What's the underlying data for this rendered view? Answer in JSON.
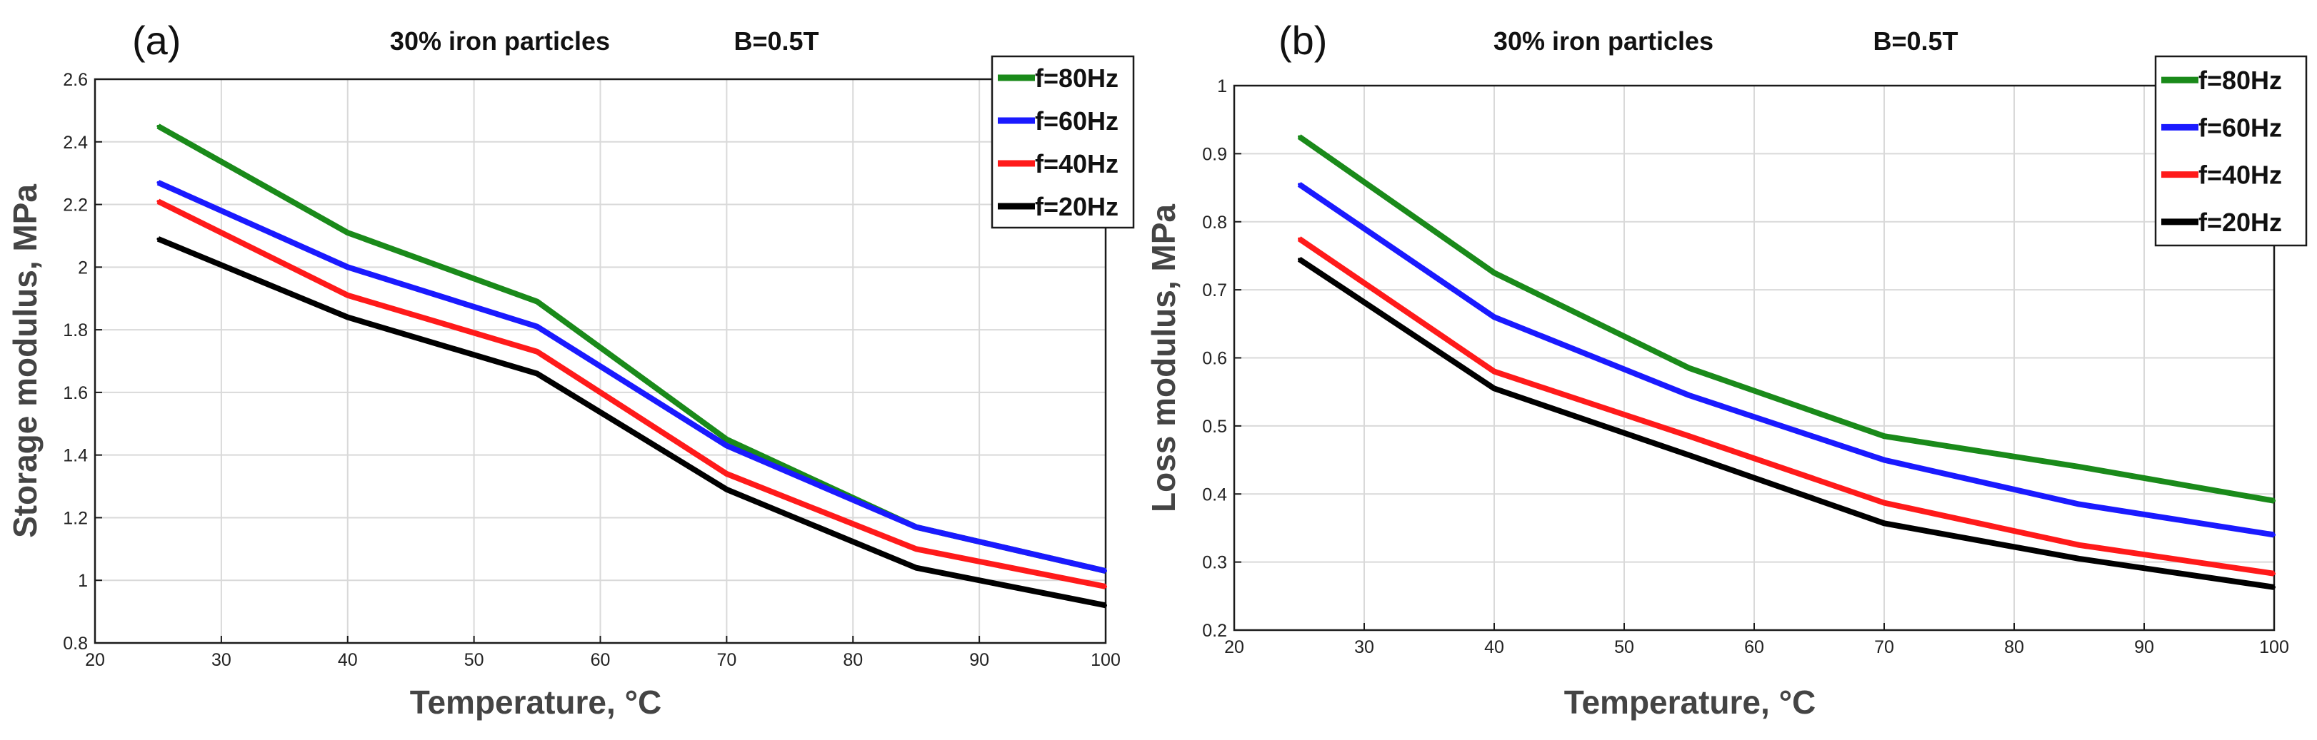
{
  "chart_data": [
    {
      "type": "line",
      "panel": "(a)",
      "title": "30% iron particles",
      "condition": "B=0.5T",
      "xlabel": "Temperature, °C",
      "ylabel": "Storage modulus, MPa",
      "xlim": [
        20,
        100
      ],
      "ylim": [
        0.8,
        2.6
      ],
      "xticks": [
        "20",
        "30",
        "40",
        "50",
        "60",
        "70",
        "80",
        "90",
        "100"
      ],
      "yticks": [
        "0.8",
        "1",
        "1.2",
        "1.4",
        "1.6",
        "1.8",
        "2",
        "2.2",
        "2.4",
        "2.6"
      ],
      "x": [
        25,
        40,
        55,
        70,
        85,
        100
      ],
      "legend_position": "top-right",
      "series": [
        {
          "name": "f=80Hz",
          "color": "#1a8a1a",
          "values": [
            2.45,
            2.11,
            1.89,
            1.45,
            1.17,
            1.03
          ]
        },
        {
          "name": "f=60Hz",
          "color": "#1a1aff",
          "values": [
            2.27,
            2.0,
            1.81,
            1.43,
            1.17,
            1.03
          ]
        },
        {
          "name": "f=40Hz",
          "color": "#ff1a1a",
          "values": [
            2.21,
            1.91,
            1.73,
            1.34,
            1.1,
            0.98
          ]
        },
        {
          "name": "f=20Hz",
          "color": "#000000",
          "values": [
            2.09,
            1.84,
            1.66,
            1.29,
            1.04,
            0.92
          ]
        }
      ]
    },
    {
      "type": "line",
      "panel": "(b)",
      "title": "30% iron particles",
      "condition": "B=0.5T",
      "xlabel": "Temperature, °C",
      "ylabel": "Loss modulus, MPa",
      "xlim": [
        20,
        100
      ],
      "ylim": [
        0.2,
        1.0
      ],
      "xticks": [
        "20",
        "30",
        "40",
        "50",
        "60",
        "70",
        "80",
        "90",
        "100"
      ],
      "yticks": [
        "0.2",
        "0.3",
        "0.4",
        "0.5",
        "0.6",
        "0.7",
        "0.8",
        "0.9",
        "1"
      ],
      "x": [
        25,
        40,
        55,
        70,
        85,
        100
      ],
      "legend_position": "top-right",
      "series": [
        {
          "name": "f=80Hz",
          "color": "#1a8a1a",
          "values": [
            0.925,
            0.725,
            0.585,
            0.485,
            0.44,
            0.39
          ]
        },
        {
          "name": "f=60Hz",
          "color": "#1a1aff",
          "values": [
            0.855,
            0.66,
            0.545,
            0.45,
            0.385,
            0.34
          ]
        },
        {
          "name": "f=40Hz",
          "color": "#ff1a1a",
          "values": [
            0.775,
            0.58,
            0.485,
            0.387,
            0.325,
            0.283
          ]
        },
        {
          "name": "f=20Hz",
          "color": "#000000",
          "values": [
            0.745,
            0.555,
            0.457,
            0.357,
            0.305,
            0.263
          ]
        }
      ]
    }
  ]
}
